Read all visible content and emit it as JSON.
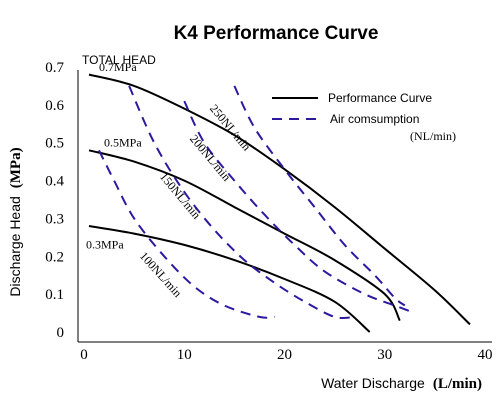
{
  "chart_data": {
    "type": "line",
    "title": "K4 Performance Curve",
    "xlabel": "Water Discharge",
    "xlabel_unit": "(L/min)",
    "ylabel": "Discharge Head",
    "ylabel_unit": "(MPa)",
    "total_head_label": "TOTAL HEAD",
    "xlim": [
      0,
      40
    ],
    "ylim": [
      0,
      0.7
    ],
    "x_ticks": [
      {
        "value": 0,
        "label": "0"
      },
      {
        "value": 10,
        "label": "10"
      },
      {
        "value": 20,
        "label": "20"
      },
      {
        "value": 30,
        "label": "30"
      },
      {
        "value": 40,
        "label": "40"
      }
    ],
    "y_ticks": [
      {
        "value": 0,
        "label": "0"
      },
      {
        "value": 0.1,
        "label": "0.1"
      },
      {
        "value": 0.2,
        "label": "0.2"
      },
      {
        "value": 0.3,
        "label": "0.3"
      },
      {
        "value": 0.4,
        "label": "0.4"
      },
      {
        "value": 0.5,
        "label": "0.5"
      },
      {
        "value": 0.6,
        "label": "0.6"
      },
      {
        "value": 0.7,
        "label": "0.7"
      }
    ],
    "legend": {
      "placement": "top-right",
      "performance_label": "Performance Curve",
      "air_label": "Air comsumption",
      "air_unit": "(NL/min)"
    },
    "performance_curves": [
      {
        "name": "0.7MPa",
        "points": [
          [
            0.5,
            0.68
          ],
          [
            5,
            0.65
          ],
          [
            10,
            0.59
          ],
          [
            15,
            0.52
          ],
          [
            20,
            0.43
          ],
          [
            25,
            0.33
          ],
          [
            30,
            0.22
          ],
          [
            35,
            0.11
          ],
          [
            38.5,
            0.02
          ]
        ]
      },
      {
        "name": "0.5MPa",
        "points": [
          [
            0.5,
            0.48
          ],
          [
            5,
            0.45
          ],
          [
            10,
            0.4
          ],
          [
            15,
            0.33
          ],
          [
            20,
            0.26
          ],
          [
            25,
            0.19
          ],
          [
            30,
            0.1
          ],
          [
            31.5,
            0.03
          ]
        ]
      },
      {
        "name": "0.3MPa",
        "points": [
          [
            0.5,
            0.28
          ],
          [
            5,
            0.26
          ],
          [
            10,
            0.23
          ],
          [
            15,
            0.19
          ],
          [
            20,
            0.14
          ],
          [
            25,
            0.08
          ],
          [
            28.5,
            0.0
          ]
        ]
      }
    ],
    "air_consumption_curves": [
      {
        "name": "100NL/min",
        "points": [
          [
            1.5,
            0.48
          ],
          [
            3,
            0.4
          ],
          [
            5,
            0.3
          ],
          [
            8,
            0.2
          ],
          [
            11,
            0.12
          ],
          [
            14,
            0.07
          ],
          [
            17.5,
            0.04
          ],
          [
            19,
            0.04
          ]
        ]
      },
      {
        "name": "150NL/min",
        "points": [
          [
            4.5,
            0.65
          ],
          [
            7,
            0.5
          ],
          [
            10,
            0.37
          ],
          [
            13,
            0.27
          ],
          [
            16,
            0.19
          ],
          [
            19,
            0.13
          ],
          [
            22,
            0.08
          ],
          [
            25,
            0.04
          ],
          [
            27,
            0.04
          ]
        ]
      },
      {
        "name": "200NL/min",
        "points": [
          [
            10,
            0.61
          ],
          [
            12,
            0.5
          ],
          [
            15,
            0.4
          ],
          [
            18,
            0.31
          ],
          [
            21,
            0.23
          ],
          [
            24,
            0.16
          ],
          [
            28,
            0.1
          ],
          [
            31,
            0.07
          ],
          [
            33,
            0.05
          ]
        ]
      },
      {
        "name": "250NL/min",
        "points": [
          [
            15,
            0.65
          ],
          [
            17,
            0.54
          ],
          [
            20,
            0.43
          ],
          [
            23,
            0.33
          ],
          [
            26,
            0.23
          ],
          [
            29,
            0.15
          ],
          [
            31,
            0.09
          ],
          [
            32,
            0.07
          ]
        ]
      }
    ],
    "annotations": [
      {
        "text": "0.7MPa",
        "x": 1.5,
        "y": 0.69
      },
      {
        "text": "0.5MPa",
        "x": 2.0,
        "y": 0.49
      },
      {
        "text": "0.3MPa",
        "x": 0.2,
        "y": 0.22
      },
      {
        "text": "250NL/min",
        "x": 12.5,
        "y": 0.59,
        "angle": 50
      },
      {
        "text": "200NL/min",
        "x": 10.5,
        "y": 0.51,
        "angle": 50
      },
      {
        "text": "150NL/min",
        "x": 7.5,
        "y": 0.41,
        "angle": 50
      },
      {
        "text": "100NL/min",
        "x": 5.5,
        "y": 0.2,
        "angle": 48
      }
    ],
    "colors": {
      "performance": "#000000",
      "air": "#2b1a9e"
    }
  }
}
